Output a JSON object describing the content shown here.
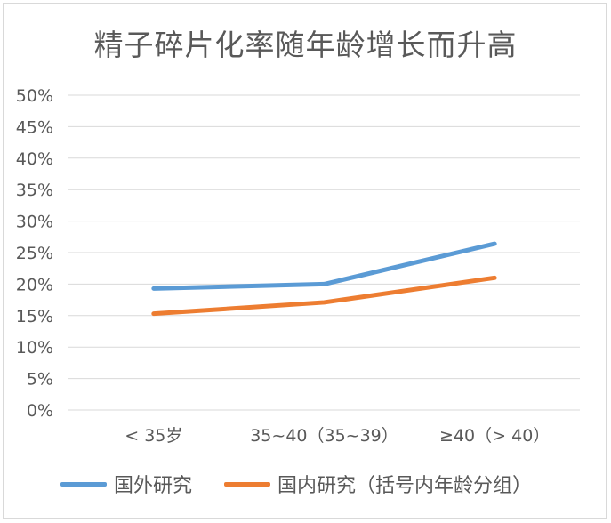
{
  "chart_data": {
    "type": "line",
    "title": "精子碎片化率随年龄增长而升高",
    "categories": [
      "< 35岁",
      "35~40（35~39）",
      "≥40（> 40）"
    ],
    "ylim": [
      0,
      50
    ],
    "yticks": [
      "0%",
      "5%",
      "10%",
      "15%",
      "20%",
      "25%",
      "30%",
      "35%",
      "40%",
      "45%",
      "50%"
    ],
    "ytick_values": [
      0,
      5,
      10,
      15,
      20,
      25,
      30,
      35,
      40,
      45,
      50
    ],
    "grid": true,
    "legend_position": "bottom",
    "series": [
      {
        "name": "国外研究",
        "values": [
          19.3,
          20.0,
          26.4
        ],
        "color": "#5b9bd5"
      },
      {
        "name": "国内研究（括号内年龄分组）",
        "values": [
          15.3,
          17.1,
          21.0
        ],
        "color": "#ed7d31"
      }
    ]
  }
}
